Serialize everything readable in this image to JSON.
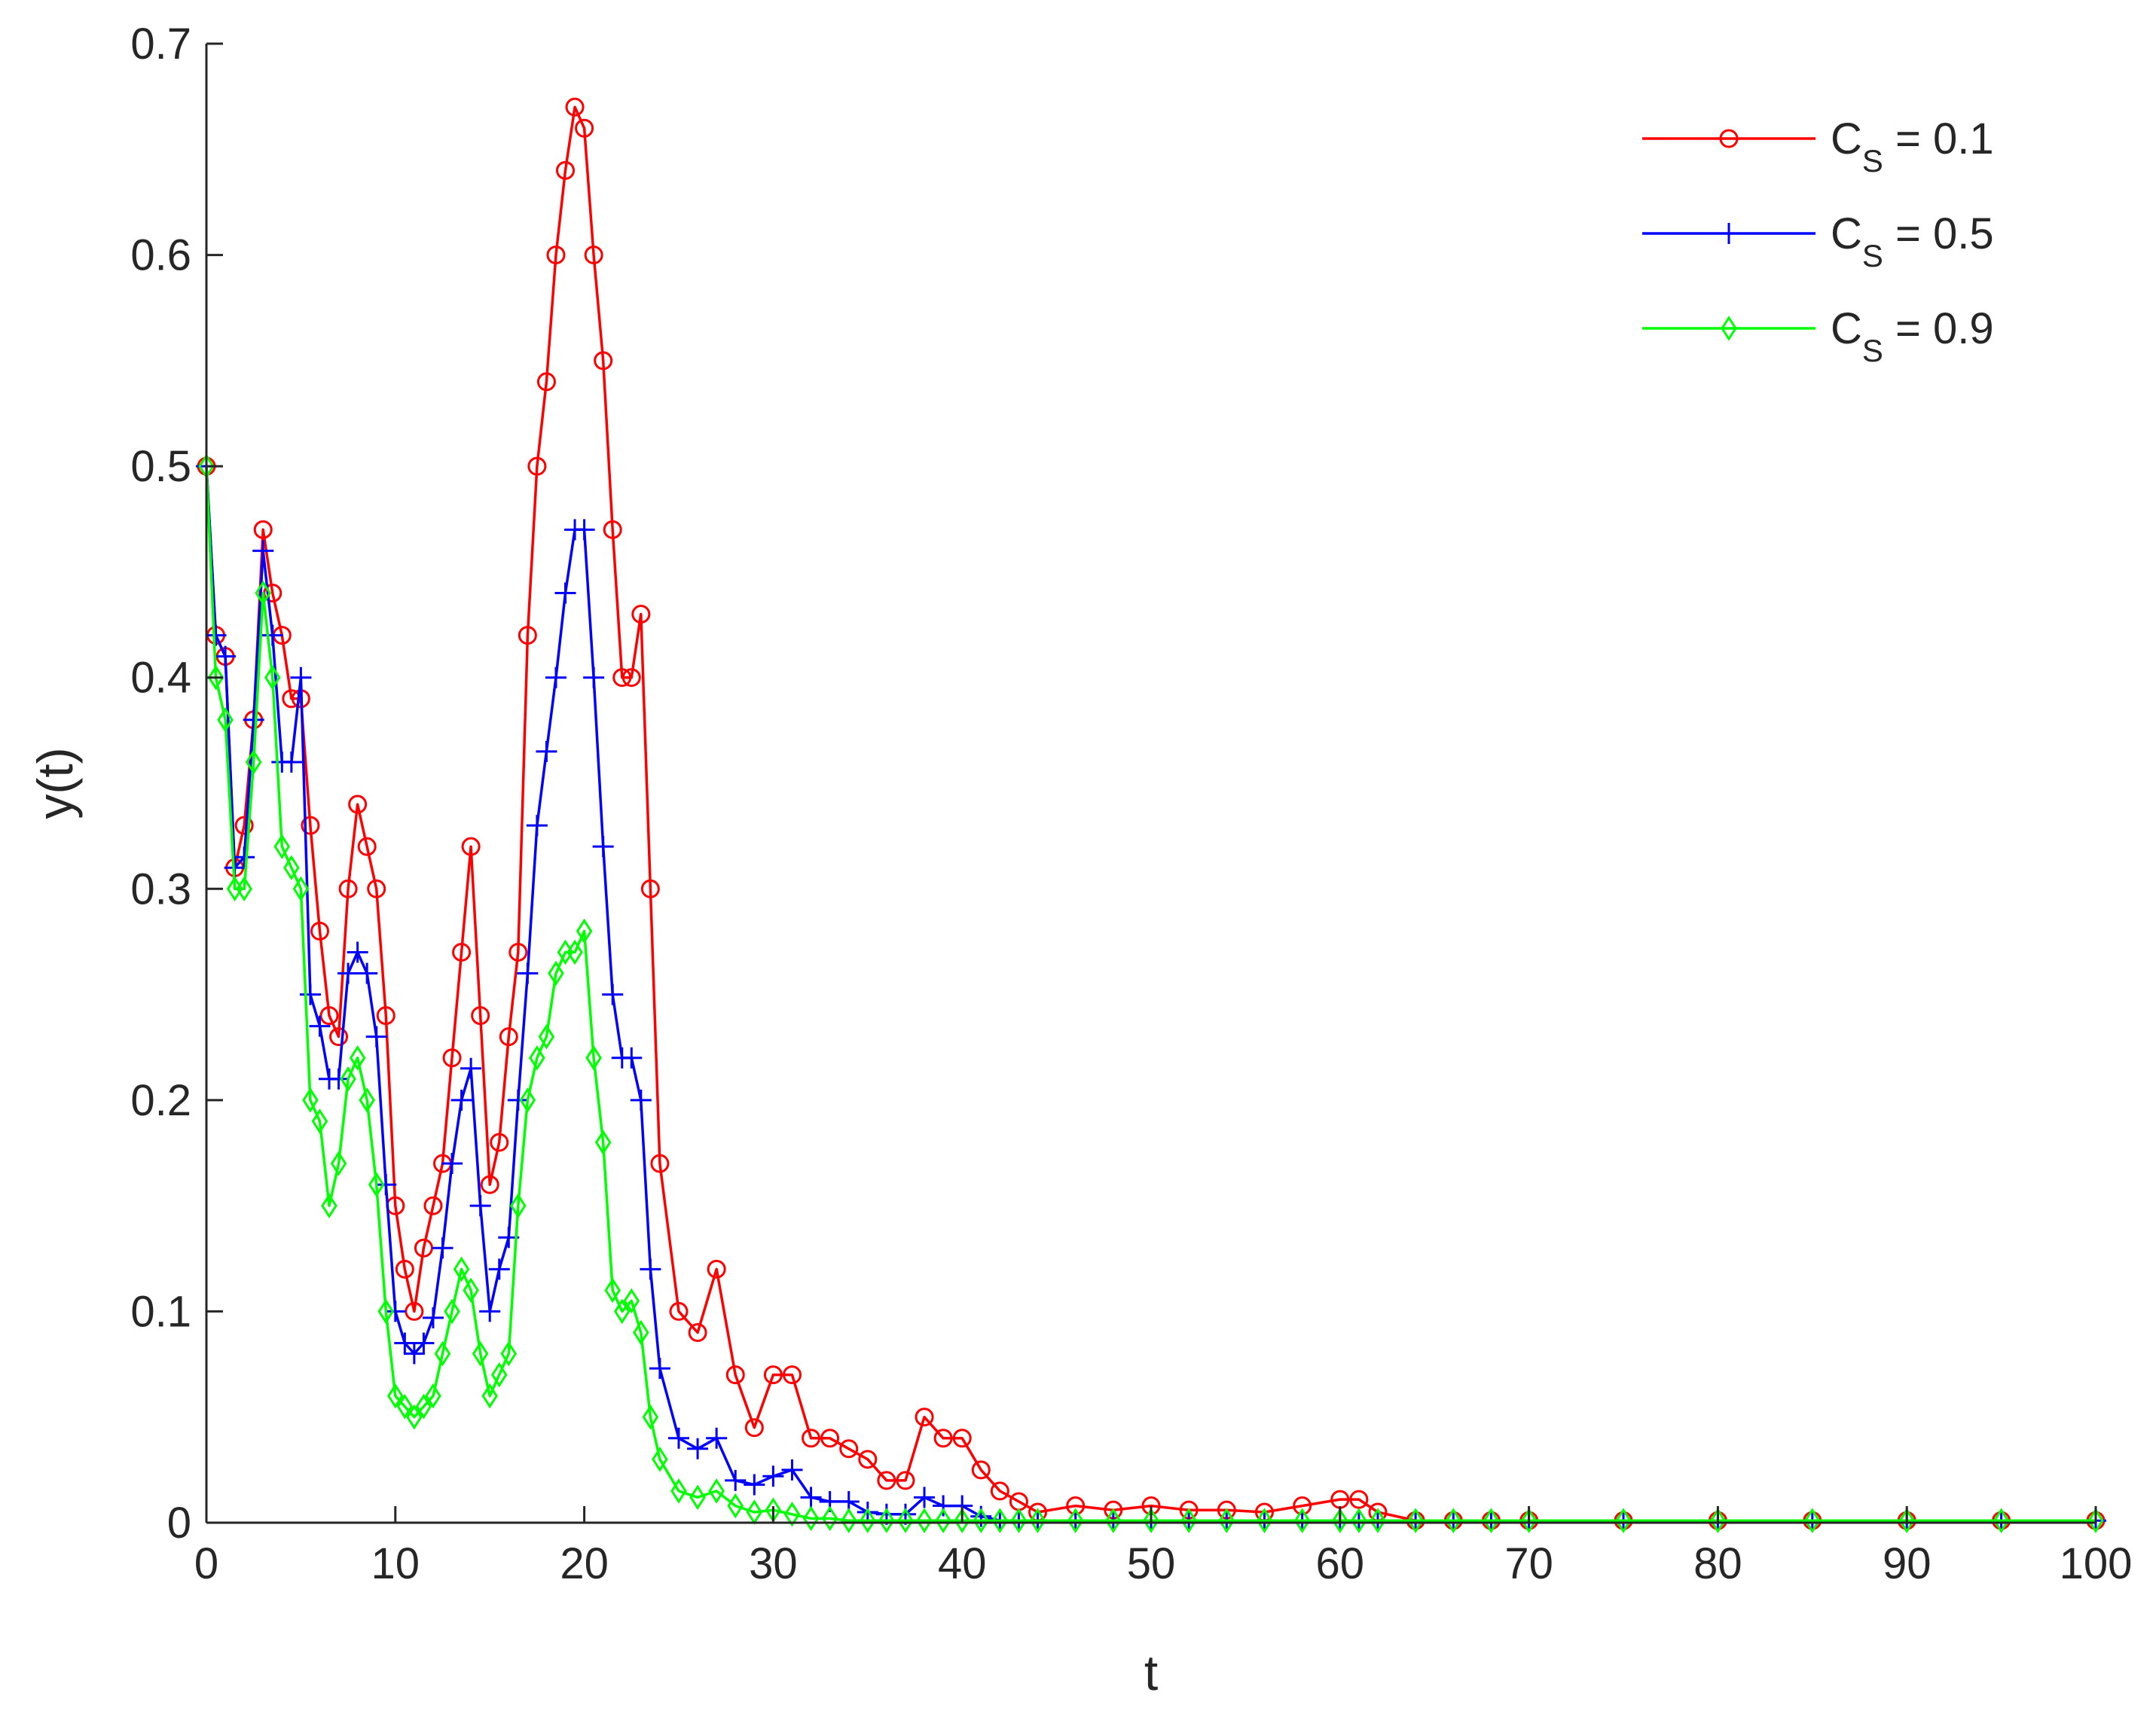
{
  "chart_data": {
    "type": "line",
    "title": "",
    "xlabel": "t",
    "ylabel": "y(t)",
    "xlim": [
      0,
      100
    ],
    "ylim": [
      0,
      0.7
    ],
    "xticks": [
      "0",
      "10",
      "20",
      "30",
      "40",
      "50",
      "60",
      "70",
      "80",
      "90",
      "100"
    ],
    "yticks": [
      "0",
      "0.1",
      "0.2",
      "0.3",
      "0.4",
      "0.5",
      "0.6",
      "0.7"
    ],
    "grid": false,
    "legend_position": "top-right",
    "x": [
      0,
      0.5,
      1,
      1.5,
      2,
      2.5,
      3,
      3.5,
      4,
      4.5,
      5,
      5.5,
      6,
      6.5,
      7,
      7.5,
      8,
      8.5,
      9,
      9.5,
      10,
      10.5,
      11,
      11.5,
      12,
      12.5,
      13,
      13.5,
      14,
      14.5,
      15,
      15.5,
      16,
      16.5,
      17,
      17.5,
      18,
      18.5,
      19,
      19.5,
      20,
      20.5,
      21,
      21.5,
      22,
      22.5,
      23,
      23.5,
      24,
      25,
      26,
      27,
      28,
      29,
      30,
      31,
      32,
      33,
      34,
      35,
      36,
      37,
      38,
      39,
      40,
      41,
      42,
      43,
      44,
      46,
      48,
      50,
      52,
      54,
      56,
      58,
      60,
      61,
      62,
      64,
      66,
      68,
      70,
      75,
      80,
      85,
      90,
      95,
      100
    ],
    "series": [
      {
        "name": "C_S = 0.1",
        "label_main": "C",
        "label_sub": "S",
        "label_rest": " = 0.1",
        "color": "#ff0000",
        "marker": "circle",
        "values": [
          0.5,
          0.42,
          0.41,
          0.31,
          0.33,
          0.38,
          0.47,
          0.44,
          0.42,
          0.39,
          0.39,
          0.33,
          0.28,
          0.24,
          0.23,
          0.3,
          0.34,
          0.32,
          0.3,
          0.24,
          0.15,
          0.12,
          0.1,
          0.13,
          0.15,
          0.17,
          0.22,
          0.27,
          0.32,
          0.24,
          0.16,
          0.18,
          0.23,
          0.27,
          0.42,
          0.5,
          0.54,
          0.6,
          0.64,
          0.67,
          0.66,
          0.6,
          0.55,
          0.47,
          0.4,
          0.4,
          0.43,
          0.3,
          0.17,
          0.1,
          0.09,
          0.12,
          0.07,
          0.045,
          0.07,
          0.07,
          0.04,
          0.04,
          0.035,
          0.03,
          0.02,
          0.02,
          0.05,
          0.04,
          0.04,
          0.025,
          0.015,
          0.01,
          0.005,
          0.008,
          0.006,
          0.008,
          0.006,
          0.006,
          0.005,
          0.008,
          0.011,
          0.011,
          0.005,
          0.001,
          0.001,
          0.001,
          0.001,
          0.001,
          0.001,
          0.001,
          0.001,
          0.001,
          0.001
        ]
      },
      {
        "name": "C_S = 0.5",
        "label_main": "C",
        "label_sub": "S",
        "label_rest": " = 0.5",
        "color": "#0000ff",
        "marker": "plus",
        "values": [
          0.5,
          0.42,
          0.41,
          0.31,
          0.315,
          0.38,
          0.46,
          0.42,
          0.36,
          0.36,
          0.4,
          0.25,
          0.235,
          0.21,
          0.21,
          0.26,
          0.27,
          0.26,
          0.23,
          0.16,
          0.1,
          0.085,
          0.08,
          0.085,
          0.097,
          0.13,
          0.17,
          0.2,
          0.215,
          0.15,
          0.1,
          0.12,
          0.135,
          0.2,
          0.26,
          0.33,
          0.365,
          0.4,
          0.44,
          0.47,
          0.47,
          0.4,
          0.32,
          0.25,
          0.22,
          0.22,
          0.2,
          0.12,
          0.073,
          0.04,
          0.035,
          0.04,
          0.02,
          0.018,
          0.022,
          0.025,
          0.012,
          0.01,
          0.01,
          0.005,
          0.004,
          0.004,
          0.012,
          0.008,
          0.008,
          0.003,
          0.001,
          0.001,
          0.001,
          0.001,
          0.001,
          0.001,
          0.001,
          0.001,
          0.001,
          0.001,
          0.001,
          0.001,
          0.001,
          0.001,
          0.001,
          0.001,
          0.001,
          0.001,
          0.001,
          0.001,
          0.001,
          0.001,
          0.001
        ]
      },
      {
        "name": "C_S = 0.9",
        "label_main": "C",
        "label_sub": "S",
        "label_rest": " = 0.9",
        "color": "#00ff00",
        "marker": "diamond",
        "values": [
          0.5,
          0.4,
          0.38,
          0.3,
          0.3,
          0.36,
          0.44,
          0.4,
          0.32,
          0.31,
          0.3,
          0.2,
          0.19,
          0.15,
          0.17,
          0.21,
          0.22,
          0.2,
          0.16,
          0.1,
          0.06,
          0.055,
          0.05,
          0.055,
          0.06,
          0.08,
          0.1,
          0.12,
          0.11,
          0.08,
          0.06,
          0.07,
          0.08,
          0.15,
          0.2,
          0.22,
          0.23,
          0.26,
          0.27,
          0.27,
          0.28,
          0.22,
          0.18,
          0.11,
          0.1,
          0.105,
          0.09,
          0.05,
          0.03,
          0.015,
          0.012,
          0.015,
          0.008,
          0.005,
          0.006,
          0.004,
          0.002,
          0.002,
          0.001,
          0.001,
          0.001,
          0.001,
          0.001,
          0.001,
          0.001,
          0.001,
          0.001,
          0.001,
          0.001,
          0.001,
          0.001,
          0.001,
          0.001,
          0.001,
          0.001,
          0.001,
          0.001,
          0.001,
          0.001,
          0.001,
          0.001,
          0.001,
          0.001,
          0.001,
          0.001,
          0.001,
          0.001,
          0.001,
          0.001
        ]
      }
    ]
  }
}
